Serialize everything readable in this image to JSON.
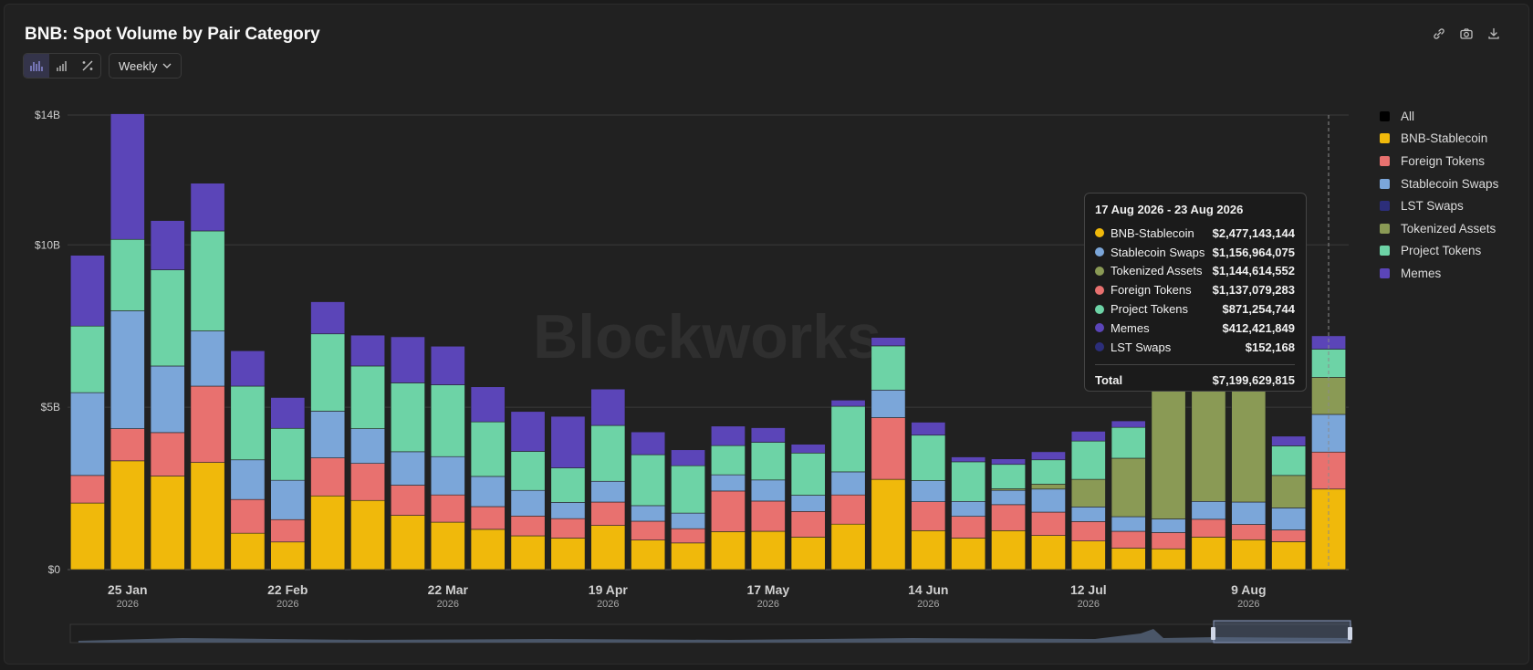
{
  "header": {
    "title": "BNB: Spot Volume by Pair Category"
  },
  "toolbar": {
    "view_icons": [
      "stacked-bar-icon",
      "bar-icon",
      "percent-icon"
    ],
    "period_selected": "Weekly",
    "action_icons": [
      "link-icon",
      "camera-icon",
      "download-icon"
    ]
  },
  "watermark": "Blockworks",
  "legend": {
    "items": [
      {
        "label": "All",
        "color": "#000000"
      },
      {
        "label": "BNB-Stablecoin",
        "color": "#f0b90b"
      },
      {
        "label": "Foreign Tokens",
        "color": "#e8716f"
      },
      {
        "label": "Stablecoin Swaps",
        "color": "#7ba6d9"
      },
      {
        "label": "LST Swaps",
        "color": "#2c2e7a"
      },
      {
        "label": "Tokenized Assets",
        "color": "#8a9a55"
      },
      {
        "label": "Project Tokens",
        "color": "#6dd3a6"
      },
      {
        "label": "Memes",
        "color": "#5b45b8"
      }
    ]
  },
  "tooltip": {
    "title": "17 Aug 2026 - 23 Aug 2026",
    "rows": [
      {
        "name": "BNB-Stablecoin",
        "value": "$2,477,143,144",
        "color": "#f0b90b"
      },
      {
        "name": "Stablecoin Swaps",
        "value": "$1,156,964,075",
        "color": "#7ba6d9"
      },
      {
        "name": "Tokenized Assets",
        "value": "$1,144,614,552",
        "color": "#8a9a55"
      },
      {
        "name": "Foreign Tokens",
        "value": "$1,137,079,283",
        "color": "#e8716f"
      },
      {
        "name": "Project Tokens",
        "value": "$871,254,744",
        "color": "#6dd3a6"
      },
      {
        "name": "Memes",
        "value": "$412,421,849",
        "color": "#5b45b8"
      },
      {
        "name": "LST Swaps",
        "value": "$152,168",
        "color": "#2c2e7a"
      }
    ],
    "total_label": "Total",
    "total_value": "$7,199,629,815"
  },
  "chart_data": {
    "type": "bar",
    "stacked": true,
    "ylim": [
      0,
      14
    ],
    "y_unit": "B USD",
    "y_ticks": [
      {
        "value": 0,
        "label": "$0"
      },
      {
        "value": 5,
        "label": "$5B"
      },
      {
        "value": 10,
        "label": "$10B"
      },
      {
        "value": 14,
        "label": "$14B"
      }
    ],
    "x_ticks": [
      {
        "index": 1,
        "label": "25 Jan",
        "sub": "2026"
      },
      {
        "index": 5,
        "label": "22 Feb",
        "sub": "2026"
      },
      {
        "index": 9,
        "label": "22 Mar",
        "sub": "2026"
      },
      {
        "index": 13,
        "label": "19 Apr",
        "sub": "2026"
      },
      {
        "index": 17,
        "label": "17 May",
        "sub": "2026"
      },
      {
        "index": 21,
        "label": "14 Jun",
        "sub": "2026"
      },
      {
        "index": 25,
        "label": "12 Jul",
        "sub": "2026"
      },
      {
        "index": 29,
        "label": "9 Aug",
        "sub": "2026"
      }
    ],
    "categories": [
      "w1",
      "w2",
      "w3",
      "w4",
      "w5",
      "w6",
      "w7",
      "w8",
      "w9",
      "w10",
      "w11",
      "w12",
      "w13",
      "w14",
      "w15",
      "w16",
      "w17",
      "w18",
      "w19",
      "w20",
      "w21",
      "w22",
      "w23",
      "w24",
      "w25",
      "w26",
      "w27",
      "w28",
      "w29",
      "w30",
      "w31",
      "w32"
    ],
    "series": [
      {
        "name": "BNB-Stablecoin",
        "color": "#f0b90b",
        "values": [
          2.05,
          3.35,
          2.88,
          3.3,
          1.12,
          0.85,
          2.27,
          2.13,
          1.67,
          1.46,
          1.24,
          1.04,
          0.97,
          1.36,
          0.91,
          0.82,
          1.17,
          1.18,
          1.0,
          1.4,
          2.78,
          1.2,
          0.97,
          1.2,
          1.05,
          0.88,
          0.66,
          0.64,
          1.0,
          0.92,
          0.86,
          2.48
        ]
      },
      {
        "name": "Foreign Tokens",
        "color": "#e8716f",
        "values": [
          0.85,
          0.99,
          1.34,
          2.35,
          1.04,
          0.69,
          1.17,
          1.14,
          0.93,
          0.84,
          0.7,
          0.61,
          0.6,
          0.72,
          0.58,
          0.44,
          1.25,
          0.93,
          0.79,
          0.9,
          1.9,
          0.89,
          0.67,
          0.8,
          0.72,
          0.6,
          0.52,
          0.5,
          0.55,
          0.47,
          0.36,
          1.14
        ]
      },
      {
        "name": "Stablecoin Swaps",
        "color": "#7ba6d9",
        "values": [
          2.55,
          3.63,
          2.05,
          1.7,
          1.22,
          1.21,
          1.44,
          1.07,
          1.03,
          1.18,
          0.93,
          0.79,
          0.5,
          0.64,
          0.48,
          0.48,
          0.5,
          0.65,
          0.5,
          0.71,
          0.85,
          0.65,
          0.46,
          0.44,
          0.71,
          0.45,
          0.45,
          0.42,
          0.55,
          0.69,
          0.68,
          1.16
        ]
      },
      {
        "name": "LST Swaps",
        "color": "#2c2e7a",
        "values": [
          0,
          0,
          0,
          0,
          0,
          0,
          0,
          0,
          0,
          0,
          0,
          0,
          0,
          0,
          0,
          0,
          0,
          0,
          0,
          0,
          0,
          0,
          0,
          0,
          0,
          0,
          0,
          0,
          0,
          0,
          0,
          0
        ]
      },
      {
        "name": "Tokenized Assets",
        "color": "#8a9a55",
        "values": [
          0,
          0,
          0,
          0,
          0,
          0,
          0,
          0,
          0,
          0,
          0,
          0,
          0,
          0,
          0,
          0,
          0,
          0,
          0,
          0,
          0,
          0,
          0,
          0.05,
          0.15,
          0.85,
          1.8,
          4.6,
          6.3,
          4.85,
          1.0,
          1.14
        ]
      },
      {
        "name": "Project Tokens",
        "color": "#6dd3a6",
        "values": [
          2.05,
          2.2,
          2.96,
          3.08,
          2.27,
          1.6,
          2.38,
          1.93,
          2.12,
          2.21,
          1.68,
          1.2,
          1.06,
          1.72,
          1.57,
          1.46,
          0.9,
          1.16,
          1.3,
          2.02,
          1.36,
          1.4,
          1.22,
          0.75,
          0.75,
          1.18,
          0.95,
          0.4,
          0.3,
          0.5,
          0.91,
          0.87
        ]
      },
      {
        "name": "Memes",
        "color": "#5b45b8",
        "values": [
          2.18,
          3.87,
          1.52,
          1.47,
          1.09,
          0.95,
          0.99,
          0.95,
          1.42,
          1.19,
          1.08,
          1.23,
          1.59,
          1.12,
          0.7,
          0.49,
          0.6,
          0.45,
          0.27,
          0.19,
          0.26,
          0.4,
          0.15,
          0.17,
          0.25,
          0.3,
          0.2,
          0.3,
          0.35,
          0.3,
          0.3,
          0.41
        ]
      }
    ],
    "highlighted_index": 31,
    "navigator": true
  }
}
